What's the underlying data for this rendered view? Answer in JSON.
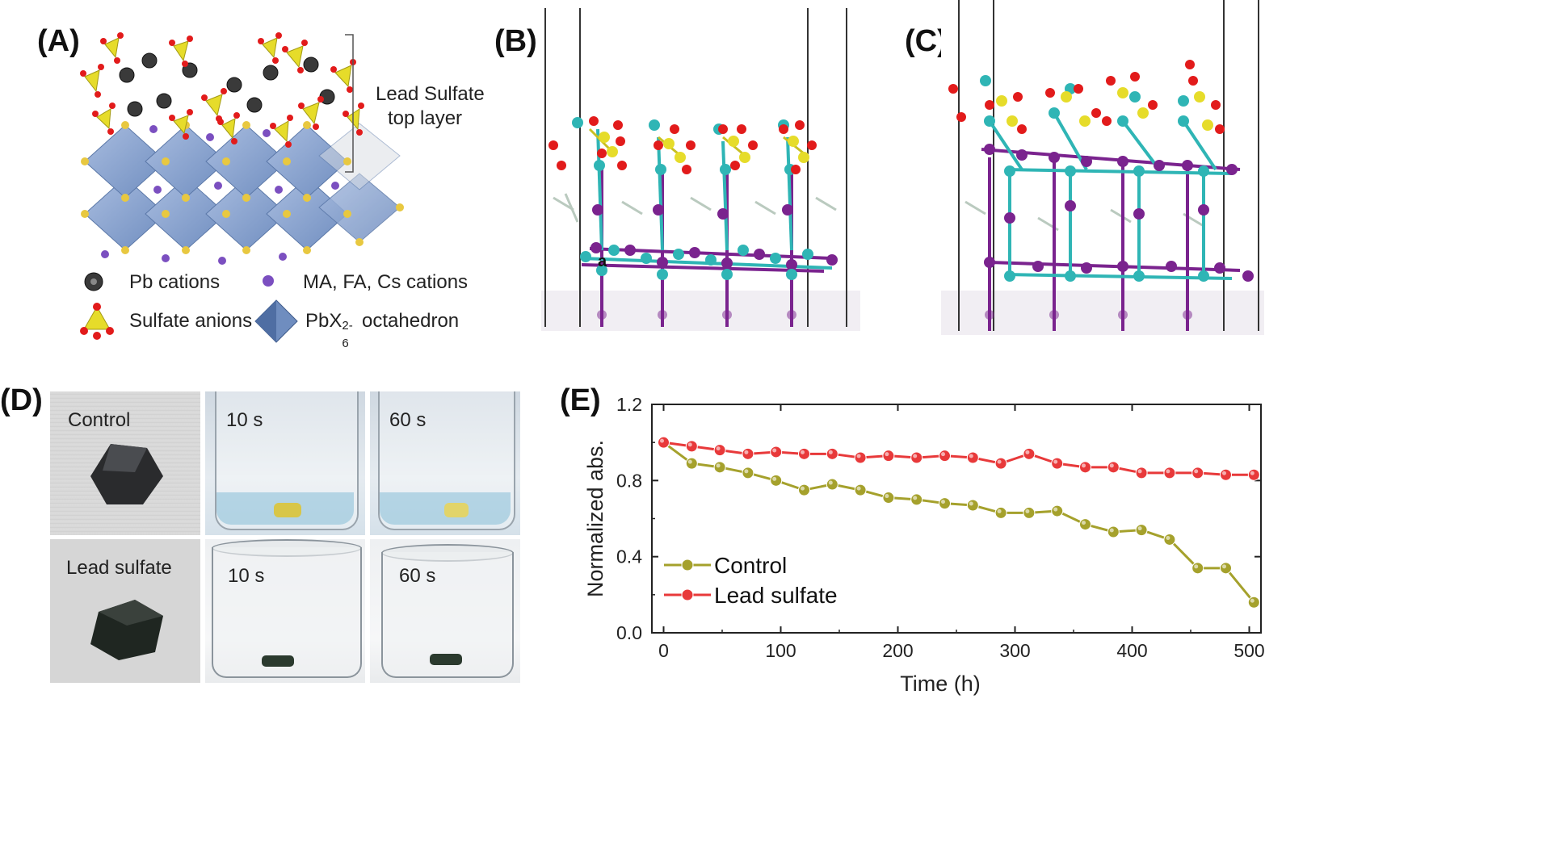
{
  "panels": {
    "a": {
      "label": "(A)",
      "bracket_label_line1": "Lead Sulfate",
      "bracket_label_line2": "top layer",
      "legend": {
        "pb": "Pb cations",
        "ma": "MA, FA, Cs cations",
        "sulfate": "Sulfate anions",
        "octa_prefix": "PbX",
        "octa_sub": "6",
        "octa_sup": "2-",
        "octa_suffix": " octahedron"
      }
    },
    "b": {
      "label": "(B)",
      "marker": "a"
    },
    "c": {
      "label": "(C)"
    },
    "d": {
      "label": "(D)",
      "control_label": "Control",
      "sulfate_label": "Lead sulfate",
      "t10": "10 s",
      "t60": "60 s"
    },
    "e": {
      "label": "(E)"
    }
  },
  "colors": {
    "control": "#a5a12c",
    "lead_sulfate": "#e8393a",
    "octahedron": "#8ea6cf",
    "sulfate": "#e6dc2a",
    "oxygen": "#e21b1b",
    "pb_md": "#2fb5b5",
    "halide": "#7a238e"
  },
  "chart_data": {
    "type": "line",
    "title": "",
    "xlabel": "Time (h)",
    "ylabel": "Normalized abs.",
    "xlim": [
      -10,
      510
    ],
    "ylim": [
      0.0,
      1.2
    ],
    "xticks": [
      0,
      100,
      200,
      300,
      400,
      500
    ],
    "yticks": [
      0.0,
      0.4,
      0.8,
      1.2
    ],
    "xtick_labels": [
      "0",
      "100",
      "200",
      "300",
      "400",
      "500"
    ],
    "ytick_labels": [
      "0.0",
      "0.4",
      "0.8",
      "1.2"
    ],
    "legend_position": "bottom-left",
    "series": [
      {
        "name": "Control",
        "color": "#a5a12c",
        "x": [
          0,
          24,
          48,
          72,
          96,
          120,
          144,
          168,
          192,
          216,
          240,
          264,
          288,
          312,
          336,
          360,
          384,
          408,
          432,
          456,
          480,
          504
        ],
        "y": [
          1.0,
          0.89,
          0.87,
          0.84,
          0.8,
          0.75,
          0.78,
          0.75,
          0.71,
          0.7,
          0.68,
          0.67,
          0.63,
          0.63,
          0.64,
          0.57,
          0.53,
          0.54,
          0.49,
          0.34,
          0.34,
          0.16
        ]
      },
      {
        "name": "Lead sulfate",
        "color": "#e8393a",
        "x": [
          0,
          24,
          48,
          72,
          96,
          120,
          144,
          168,
          192,
          216,
          240,
          264,
          288,
          312,
          336,
          360,
          384,
          408,
          432,
          456,
          480,
          504
        ],
        "y": [
          1.0,
          0.98,
          0.96,
          0.94,
          0.95,
          0.94,
          0.94,
          0.92,
          0.93,
          0.92,
          0.93,
          0.92,
          0.89,
          0.94,
          0.89,
          0.87,
          0.87,
          0.84,
          0.84,
          0.84,
          0.83,
          0.83
        ]
      }
    ]
  }
}
